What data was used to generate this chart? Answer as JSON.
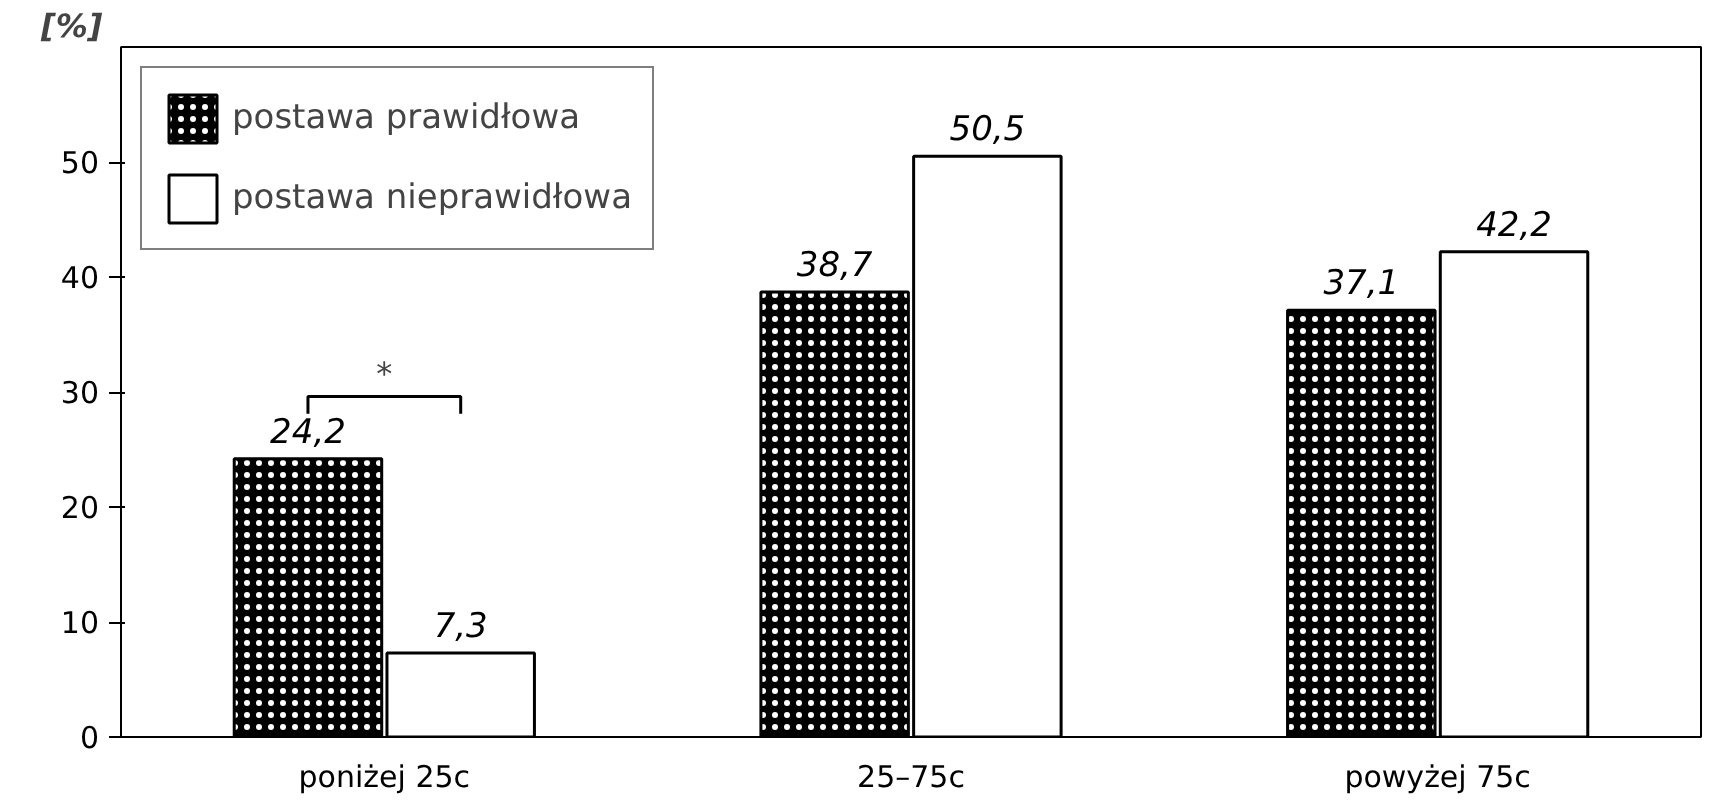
{
  "chart_data": {
    "type": "bar",
    "ylabel": "[%]",
    "categories": [
      "poniżej 25c",
      "25–75c",
      "powyżej 75c"
    ],
    "series": [
      {
        "name": "postawa prawidłowa",
        "color": "#000000",
        "values": [
          24.2,
          38.7,
          37.1
        ],
        "value_labels": [
          "24,2",
          "38,7",
          "37,1"
        ]
      },
      {
        "name": "postawa nieprawidłowa",
        "color": "#ffffff",
        "values": [
          7.3,
          50.5,
          42.2
        ],
        "value_labels": [
          "7,3",
          "50,5",
          "42,2"
        ]
      }
    ],
    "ylim": [
      0,
      60
    ],
    "yticks": [
      0,
      10,
      20,
      30,
      40,
      50
    ],
    "grid": false,
    "legend": "top left",
    "annotations": [
      "*"
    ]
  }
}
